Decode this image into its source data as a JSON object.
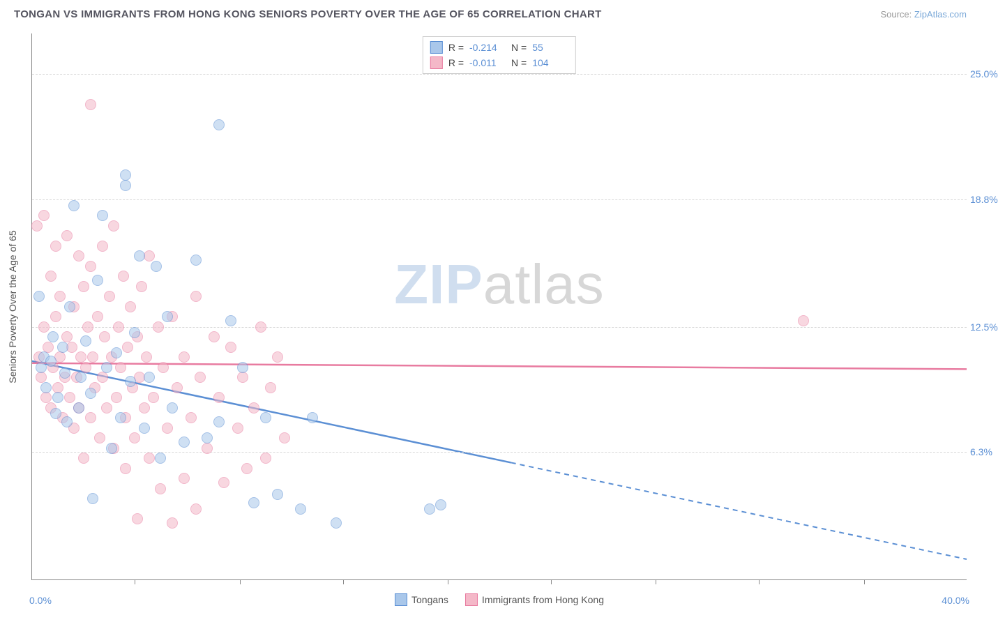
{
  "header": {
    "title": "TONGAN VS IMMIGRANTS FROM HONG KONG SENIORS POVERTY OVER THE AGE OF 65 CORRELATION CHART",
    "source_prefix": "Source: ",
    "source_link": "ZipAtlas.com"
  },
  "chart": {
    "type": "scatter",
    "ylabel": "Seniors Poverty Over the Age of 65",
    "xlim": [
      0,
      40
    ],
    "ylim": [
      0,
      27
    ],
    "x_min_label": "0.0%",
    "x_max_label": "40.0%",
    "yticks": [
      {
        "v": 6.3,
        "label": "6.3%"
      },
      {
        "v": 12.5,
        "label": "12.5%"
      },
      {
        "v": 18.8,
        "label": "18.8%"
      },
      {
        "v": 25.0,
        "label": "25.0%"
      }
    ],
    "xticks": [
      4.4,
      8.9,
      13.3,
      17.8,
      22.2,
      26.7,
      31.1,
      35.6
    ],
    "background_color": "#ffffff",
    "grid_color": "#d8d8d8",
    "axis_color": "#888888",
    "tick_label_color": "#5b8fd4",
    "point_radius": 8,
    "point_opacity": 0.55,
    "watermark": {
      "part1": "ZIP",
      "part2": "atlas"
    }
  },
  "series": [
    {
      "name": "Tongans",
      "fill": "#a9c7ea",
      "stroke": "#5b8fd4",
      "R": "-0.214",
      "N": "55",
      "trend": {
        "x1": 0,
        "y1": 10.8,
        "x2": 40,
        "y2": 1.0,
        "solid_until_x": 20.5
      },
      "points": [
        [
          0.3,
          14.0
        ],
        [
          0.4,
          10.5
        ],
        [
          0.5,
          11.0
        ],
        [
          0.6,
          9.5
        ],
        [
          0.8,
          10.8
        ],
        [
          0.9,
          12.0
        ],
        [
          1.0,
          8.2
        ],
        [
          1.1,
          9.0
        ],
        [
          1.3,
          11.5
        ],
        [
          1.4,
          10.2
        ],
        [
          1.5,
          7.8
        ],
        [
          1.6,
          13.5
        ],
        [
          1.8,
          18.5
        ],
        [
          2.0,
          8.5
        ],
        [
          2.1,
          10.0
        ],
        [
          2.3,
          11.8
        ],
        [
          2.5,
          9.2
        ],
        [
          2.6,
          4.0
        ],
        [
          2.8,
          14.8
        ],
        [
          3.0,
          18.0
        ],
        [
          3.2,
          10.5
        ],
        [
          3.4,
          6.5
        ],
        [
          3.6,
          11.2
        ],
        [
          3.8,
          8.0
        ],
        [
          4.0,
          20.0
        ],
        [
          4.0,
          19.5
        ],
        [
          4.2,
          9.8
        ],
        [
          4.4,
          12.2
        ],
        [
          4.6,
          16.0
        ],
        [
          4.8,
          7.5
        ],
        [
          5.0,
          10.0
        ],
        [
          5.3,
          15.5
        ],
        [
          5.5,
          6.0
        ],
        [
          5.8,
          13.0
        ],
        [
          6.0,
          8.5
        ],
        [
          6.5,
          6.8
        ],
        [
          7.0,
          15.8
        ],
        [
          7.5,
          7.0
        ],
        [
          8.0,
          22.5
        ],
        [
          8.0,
          7.8
        ],
        [
          8.5,
          12.8
        ],
        [
          9.0,
          10.5
        ],
        [
          9.5,
          3.8
        ],
        [
          10.0,
          8.0
        ],
        [
          10.5,
          4.2
        ],
        [
          11.5,
          3.5
        ],
        [
          12.0,
          8.0
        ],
        [
          13.0,
          2.8
        ],
        [
          17.0,
          3.5
        ],
        [
          17.5,
          3.7
        ]
      ]
    },
    {
      "name": "Immigrants from Hong Kong",
      "fill": "#f4b8c8",
      "stroke": "#e87ba0",
      "R": "-0.011",
      "N": "104",
      "trend": {
        "x1": 0,
        "y1": 10.7,
        "x2": 40,
        "y2": 10.4,
        "solid_until_x": 40
      },
      "points": [
        [
          0.2,
          17.5
        ],
        [
          0.3,
          11.0
        ],
        [
          0.4,
          10.0
        ],
        [
          0.5,
          12.5
        ],
        [
          0.5,
          18.0
        ],
        [
          0.6,
          9.0
        ],
        [
          0.7,
          11.5
        ],
        [
          0.8,
          15.0
        ],
        [
          0.8,
          8.5
        ],
        [
          0.9,
          10.5
        ],
        [
          1.0,
          13.0
        ],
        [
          1.0,
          16.5
        ],
        [
          1.1,
          9.5
        ],
        [
          1.2,
          11.0
        ],
        [
          1.2,
          14.0
        ],
        [
          1.3,
          8.0
        ],
        [
          1.4,
          10.0
        ],
        [
          1.5,
          12.0
        ],
        [
          1.5,
          17.0
        ],
        [
          1.6,
          9.0
        ],
        [
          1.7,
          11.5
        ],
        [
          1.8,
          7.5
        ],
        [
          1.8,
          13.5
        ],
        [
          1.9,
          10.0
        ],
        [
          2.0,
          16.0
        ],
        [
          2.0,
          8.5
        ],
        [
          2.1,
          11.0
        ],
        [
          2.2,
          14.5
        ],
        [
          2.2,
          6.0
        ],
        [
          2.3,
          10.5
        ],
        [
          2.4,
          12.5
        ],
        [
          2.5,
          8.0
        ],
        [
          2.5,
          15.5
        ],
        [
          2.5,
          23.5
        ],
        [
          2.6,
          11.0
        ],
        [
          2.7,
          9.5
        ],
        [
          2.8,
          13.0
        ],
        [
          2.9,
          7.0
        ],
        [
          3.0,
          10.0
        ],
        [
          3.0,
          16.5
        ],
        [
          3.1,
          12.0
        ],
        [
          3.2,
          8.5
        ],
        [
          3.3,
          14.0
        ],
        [
          3.4,
          11.0
        ],
        [
          3.5,
          6.5
        ],
        [
          3.5,
          17.5
        ],
        [
          3.6,
          9.0
        ],
        [
          3.7,
          12.5
        ],
        [
          3.8,
          10.5
        ],
        [
          3.9,
          15.0
        ],
        [
          4.0,
          8.0
        ],
        [
          4.0,
          5.5
        ],
        [
          4.1,
          11.5
        ],
        [
          4.2,
          13.5
        ],
        [
          4.3,
          9.5
        ],
        [
          4.4,
          7.0
        ],
        [
          4.5,
          12.0
        ],
        [
          4.5,
          3.0
        ],
        [
          4.6,
          10.0
        ],
        [
          4.7,
          14.5
        ],
        [
          4.8,
          8.5
        ],
        [
          4.9,
          11.0
        ],
        [
          5.0,
          6.0
        ],
        [
          5.0,
          16.0
        ],
        [
          5.2,
          9.0
        ],
        [
          5.4,
          12.5
        ],
        [
          5.5,
          4.5
        ],
        [
          5.6,
          10.5
        ],
        [
          5.8,
          7.5
        ],
        [
          6.0,
          13.0
        ],
        [
          6.0,
          2.8
        ],
        [
          6.2,
          9.5
        ],
        [
          6.5,
          11.0
        ],
        [
          6.5,
          5.0
        ],
        [
          6.8,
          8.0
        ],
        [
          7.0,
          14.0
        ],
        [
          7.0,
          3.5
        ],
        [
          7.2,
          10.0
        ],
        [
          7.5,
          6.5
        ],
        [
          7.8,
          12.0
        ],
        [
          8.0,
          9.0
        ],
        [
          8.2,
          4.8
        ],
        [
          8.5,
          11.5
        ],
        [
          8.8,
          7.5
        ],
        [
          9.0,
          10.0
        ],
        [
          9.2,
          5.5
        ],
        [
          9.5,
          8.5
        ],
        [
          9.8,
          12.5
        ],
        [
          10.0,
          6.0
        ],
        [
          10.2,
          9.5
        ],
        [
          10.5,
          11.0
        ],
        [
          10.8,
          7.0
        ],
        [
          33.0,
          12.8
        ]
      ]
    }
  ],
  "corr_legend": {
    "R_label": "R =",
    "N_label": "N ="
  }
}
